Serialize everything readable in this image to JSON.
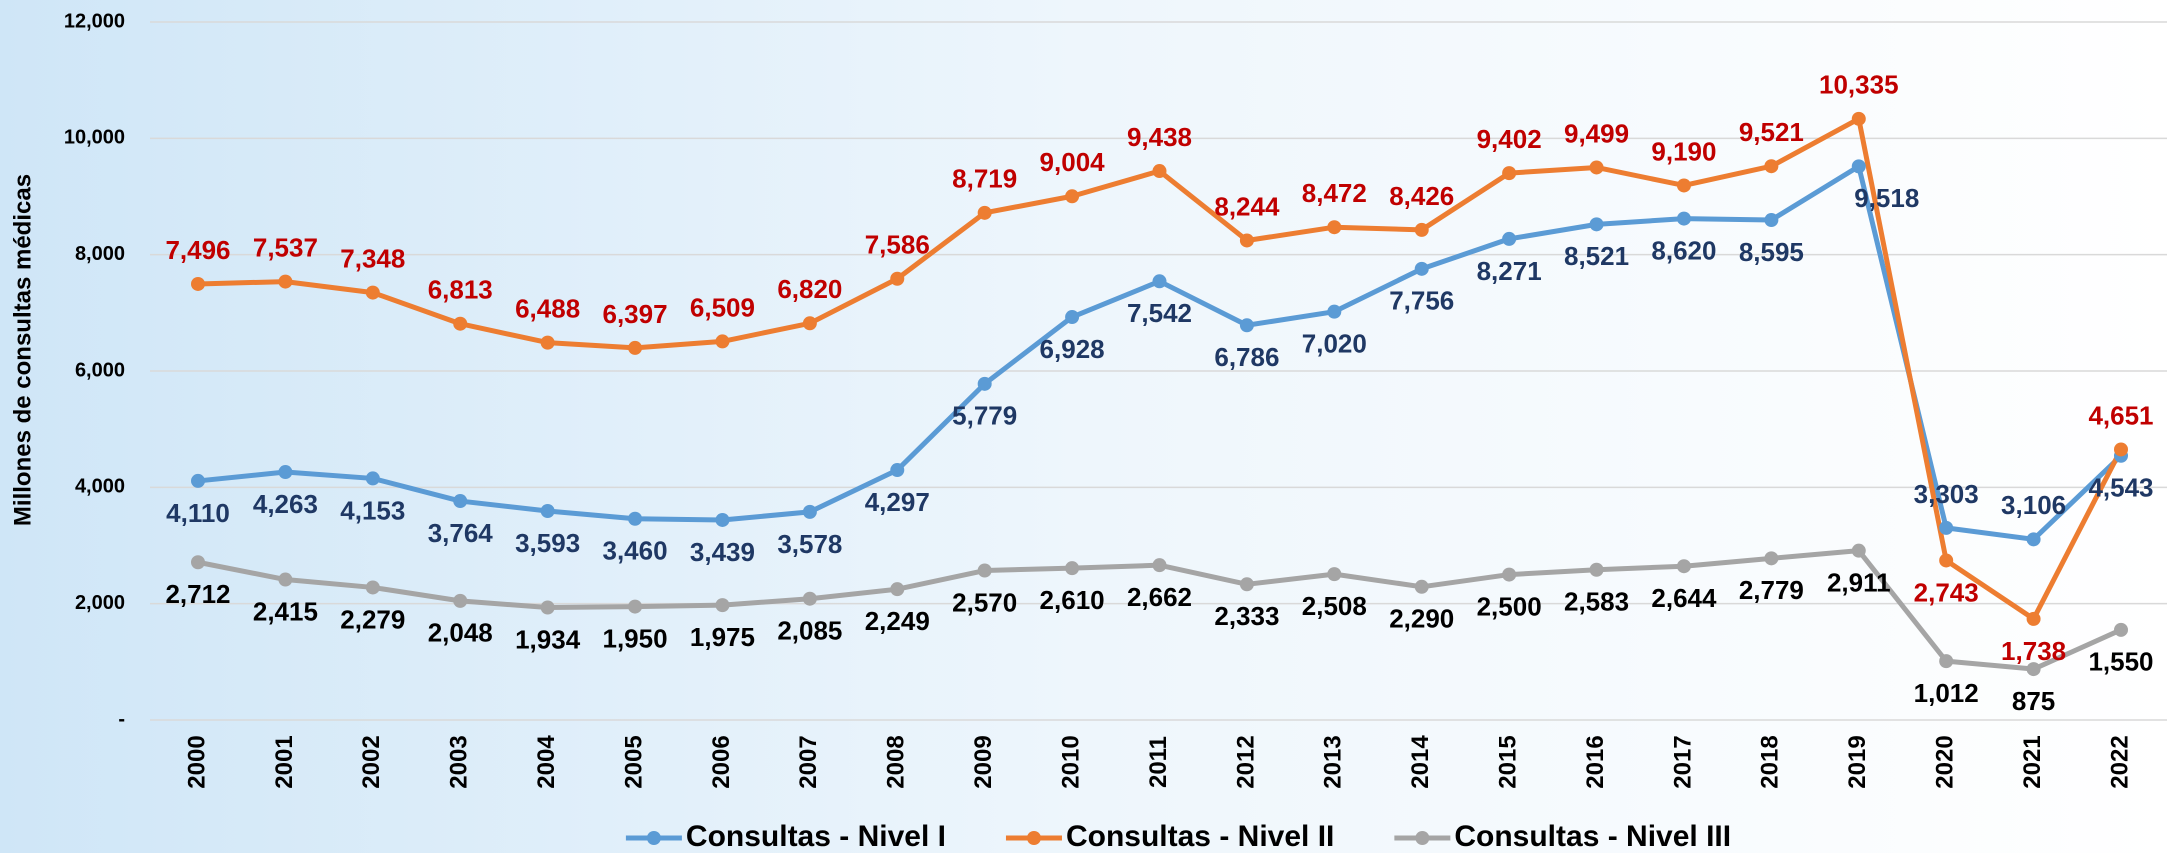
{
  "chart_data": {
    "type": "line",
    "y_label": "Millones de consultas médicas",
    "categories": [
      "2000",
      "2001",
      "2002",
      "2003",
      "2004",
      "2005",
      "2006",
      "2007",
      "2008",
      "2009",
      "2010",
      "2011",
      "2012",
      "2013",
      "2014",
      "2015",
      "2016",
      "2017",
      "2018",
      "2019",
      "2020",
      "2021",
      "2022"
    ],
    "series": [
      {
        "name": "Consultas - Nivel I",
        "color": "#5b9bd5",
        "label_color": "#1f3864",
        "values": [
          4110,
          4263,
          4153,
          3764,
          3593,
          3460,
          3439,
          3578,
          4297,
          5779,
          6928,
          7542,
          6786,
          7020,
          7756,
          8271,
          8521,
          8620,
          8595,
          9518,
          3303,
          3106,
          4543
        ],
        "value_labels": [
          "4,110",
          "4,263",
          "4,153",
          "3,764",
          "3,593",
          "3,460",
          "3,439",
          "3,578",
          "4,297",
          "5,779",
          "6,928",
          "7,542",
          "6,786",
          "7,020",
          "7,756",
          "8,271",
          "8,521",
          "8,620",
          "8,595",
          "9,518",
          "3,303",
          "3,106",
          "4,543"
        ]
      },
      {
        "name": "Consultas - Nivel II",
        "color": "#ed7d31",
        "label_color": "#c00000",
        "values": [
          7496,
          7537,
          7348,
          6813,
          6488,
          6397,
          6509,
          6820,
          7586,
          8719,
          9004,
          9438,
          8244,
          8472,
          8426,
          9402,
          9499,
          9190,
          9521,
          10335,
          2743,
          1738,
          4651
        ],
        "value_labels": [
          "7,496",
          "7,537",
          "7,348",
          "6,813",
          "6,488",
          "6,397",
          "6,509",
          "6,820",
          "7,586",
          "8,719",
          "9,004",
          "9,438",
          "8,244",
          "8,472",
          "8,426",
          "9,402",
          "9,499",
          "9,190",
          "9,521",
          "10,335",
          "2,743",
          "1,738",
          "4,651"
        ]
      },
      {
        "name": "Consultas - Nivel III",
        "color": "#a5a5a5",
        "label_color": "#000000",
        "values": [
          2712,
          2415,
          2279,
          2048,
          1934,
          1950,
          1975,
          2085,
          2249,
          2570,
          2610,
          2662,
          2333,
          2508,
          2290,
          2500,
          2583,
          2644,
          2779,
          2911,
          1012,
          875,
          1550
        ],
        "value_labels": [
          "2,712",
          "2,415",
          "2,279",
          "2,048",
          "1,934",
          "1,950",
          "1,975",
          "2,085",
          "2,249",
          "2,570",
          "2,610",
          "2,662",
          "2,333",
          "2,508",
          "2,290",
          "2,500",
          "2,583",
          "2,644",
          "2,779",
          "2,911",
          "1,012",
          "875",
          "1,550"
        ]
      }
    ],
    "ylim": [
      0,
      12000
    ],
    "yticks": [
      {
        "value": 0,
        "label": "-"
      },
      {
        "value": 2000,
        "label": "2,000"
      },
      {
        "value": 4000,
        "label": "4,000"
      },
      {
        "value": 6000,
        "label": "6,000"
      },
      {
        "value": 8000,
        "label": "8,000"
      },
      {
        "value": 10000,
        "label": "10,000"
      },
      {
        "value": 12000,
        "label": "12,000"
      }
    ],
    "grid": true,
    "legend": "bottom"
  }
}
